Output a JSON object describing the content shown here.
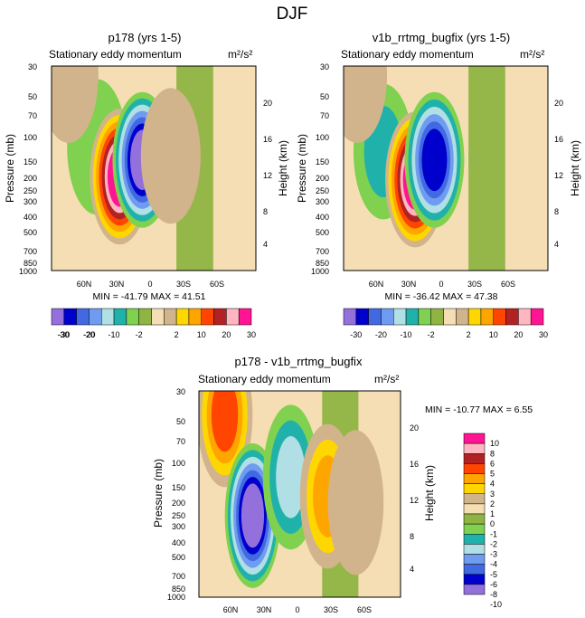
{
  "figure": {
    "title": "DJF",
    "units_label": "m²/s²"
  },
  "chart_data": [
    {
      "type": "heatmap",
      "title": "p178 (yrs 1-5)",
      "subtitle": "Stationary eddy momentum",
      "units": "m²/s²",
      "xlabel": "",
      "ylabel": "Pressure (mb)",
      "ylabel_right": "Height (km)",
      "x_ticks": [
        "60N",
        "30N",
        "0",
        "30S",
        "60S"
      ],
      "y_ticks": [
        "30",
        "50",
        "70",
        "100",
        "150",
        "200",
        "250",
        "300",
        "400",
        "500",
        "700",
        "850",
        "1000"
      ],
      "y2_ticks": [
        "20",
        "16",
        "12",
        "8",
        "4"
      ],
      "ylim": [
        1000,
        30
      ],
      "xlim": [
        90,
        -90
      ],
      "grid": false,
      "stats": {
        "min": -41.79,
        "max": 41.51
      },
      "stats_text": "MIN = -41.79  MAX =  41.51",
      "colorbar": {
        "orientation": "horizontal",
        "levels": [
          -30,
          -25,
          -20,
          -15,
          -10,
          -5,
          -2,
          0,
          2,
          5,
          10,
          15,
          20,
          25,
          30
        ],
        "tick_labels": [
          "-30",
          "-20",
          "-10",
          "-2",
          "2",
          "10",
          "20",
          "30"
        ]
      },
      "features": [
        {
          "lat": 50,
          "p": 120,
          "sign": -1,
          "peak": 8,
          "note": "broad negative column"
        },
        {
          "lat": 30,
          "p": 200,
          "sign": 1,
          "peak": 41.51,
          "note": "positive core"
        },
        {
          "lat": 10,
          "p": 150,
          "sign": -1,
          "peak": 41.79,
          "note": "negative core"
        },
        {
          "lat": -15,
          "p": 140,
          "sign": 1,
          "peak": 5,
          "note": "small positive"
        },
        {
          "lat": 75,
          "p": 35,
          "sign": 1,
          "peak": 4,
          "note": "positive top left"
        }
      ]
    },
    {
      "type": "heatmap",
      "title": "v1b_rrtmg_bugfix (yrs 1-5)",
      "subtitle": "Stationary eddy momentum",
      "units": "m²/s²",
      "xlabel": "",
      "ylabel": "Pressure (mb)",
      "ylabel_right": "Height (km)",
      "x_ticks": [
        "60N",
        "30N",
        "0",
        "30S",
        "60S"
      ],
      "y_ticks": [
        "30",
        "50",
        "70",
        "100",
        "150",
        "200",
        "250",
        "300",
        "400",
        "500",
        "700",
        "850",
        "1000"
      ],
      "y2_ticks": [
        "20",
        "16",
        "12",
        "8",
        "4"
      ],
      "ylim": [
        1000,
        30
      ],
      "xlim": [
        90,
        -90
      ],
      "grid": false,
      "stats": {
        "min": -36.42,
        "max": 47.38
      },
      "stats_text": "MIN = -36.42  MAX =  47.38",
      "colorbar": {
        "orientation": "horizontal",
        "levels": [
          -30,
          -25,
          -20,
          -15,
          -10,
          -5,
          -2,
          0,
          2,
          5,
          10,
          15,
          20,
          25,
          30
        ],
        "tick_labels": [
          "-30",
          "-20",
          "-10",
          "-2",
          "2",
          "10",
          "20",
          "30"
        ]
      },
      "features": [
        {
          "lat": 55,
          "p": 130,
          "sign": -1,
          "peak": 10,
          "note": "broad negative column"
        },
        {
          "lat": 27,
          "p": 210,
          "sign": 1,
          "peak": 47.38,
          "note": "positive core"
        },
        {
          "lat": 10,
          "p": 150,
          "sign": -1,
          "peak": 36.42,
          "note": "negative core"
        },
        {
          "lat": 78,
          "p": 35,
          "sign": 1,
          "peak": 4,
          "note": "positive top left"
        }
      ]
    },
    {
      "type": "heatmap",
      "title": "p178 - v1b_rrtmg_bugfix",
      "subtitle": "Stationary eddy momentum",
      "units": "m²/s²",
      "xlabel": "",
      "ylabel": "Pressure (mb)",
      "ylabel_right": "Height (km)",
      "x_ticks": [
        "60N",
        "30N",
        "0",
        "30S",
        "60S"
      ],
      "y_ticks": [
        "30",
        "50",
        "70",
        "100",
        "150",
        "200",
        "250",
        "300",
        "400",
        "500",
        "700",
        "850",
        "1000"
      ],
      "y2_ticks": [
        "20",
        "16",
        "12",
        "8",
        "4"
      ],
      "ylim": [
        1000,
        30
      ],
      "xlim": [
        90,
        -90
      ],
      "grid": false,
      "stats": {
        "min": -10.77,
        "max": 6.55
      },
      "stats_text": "MIN = -10.77  MAX =    6.55",
      "colorbar": {
        "orientation": "vertical",
        "levels": [
          -10,
          -8,
          -6,
          -5,
          -4,
          -3,
          -2,
          -1,
          0,
          1,
          2,
          3,
          4,
          5,
          6,
          8,
          10
        ],
        "tick_labels": [
          "10",
          "8",
          "6",
          "5",
          "4",
          "3",
          "2",
          "1",
          "0",
          "-1",
          "-2",
          "-3",
          "-4",
          "-5",
          "-6",
          "-8",
          "-10"
        ]
      },
      "features": [
        {
          "lat": 67,
          "p": 45,
          "sign": 1,
          "peak": 6.55,
          "note": "positive upper column"
        },
        {
          "lat": 42,
          "p": 250,
          "sign": -1,
          "peak": 10.77,
          "note": "negative core"
        },
        {
          "lat": 8,
          "p": 130,
          "sign": -1,
          "peak": 4,
          "note": "secondary negative"
        },
        {
          "lat": -25,
          "p": 180,
          "sign": 1,
          "peak": 4,
          "note": "positive near 25S"
        },
        {
          "lat": -50,
          "p": 200,
          "sign": 1,
          "peak": 1.5,
          "note": "weak positive"
        }
      ]
    }
  ],
  "colors": {
    "full": [
      "#9370db",
      "#0000cd",
      "#4169e1",
      "#6f9cf0",
      "#b0e0e6",
      "#20b2aa",
      "#7fd14f",
      "#8fb443",
      "#f5deb3",
      "#d2b48c",
      "#ffd700",
      "#ffa500",
      "#ff4500",
      "#b22222",
      "#ffb6c1",
      "#ff1493"
    ],
    "diff": [
      "#9370db",
      "#0000cd",
      "#4169e1",
      "#6f9cf0",
      "#b0e0e6",
      "#20b2aa",
      "#7fd14f",
      "#8fb443",
      "#f5deb3",
      "#d2b48c",
      "#ffd700",
      "#ffa500",
      "#ff4500",
      "#b22222",
      "#ffb6c1",
      "#ff1493"
    ]
  }
}
